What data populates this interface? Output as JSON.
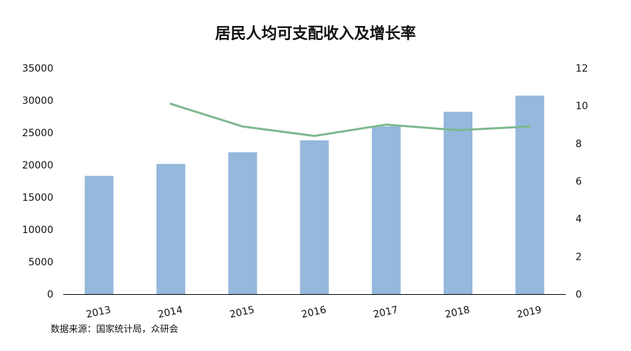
{
  "title": "居民人均可支配收入及增长率",
  "source": "数据来源：国家统计局，众研会",
  "colors": {
    "bar": "#95b8dc",
    "line": "#7db88f",
    "axis": "#000000",
    "text": "#111111"
  },
  "chart_data": {
    "type": "bar",
    "title": "居民人均可支配收入及增长率",
    "categories": [
      "2013",
      "2014",
      "2015",
      "2016",
      "2017",
      "2018",
      "2019"
    ],
    "series": [
      {
        "type": "bar",
        "axis": "left",
        "values": [
          18311,
          20167,
          21966,
          23821,
          25974,
          28228,
          30733
        ]
      },
      {
        "type": "line",
        "axis": "right",
        "values": [
          null,
          10.1,
          8.9,
          8.4,
          9.0,
          8.7,
          8.9
        ]
      }
    ],
    "y_left": {
      "ylim": [
        0,
        35000
      ],
      "ticks": [
        "0",
        "5000",
        "10000",
        "15000",
        "20000",
        "25000",
        "30000",
        "35000"
      ]
    },
    "y_right": {
      "ylim": [
        0,
        12
      ],
      "ticks": [
        "0",
        "2",
        "4",
        "6",
        "8",
        "10",
        "12"
      ]
    },
    "grid": false,
    "legend": "none"
  }
}
